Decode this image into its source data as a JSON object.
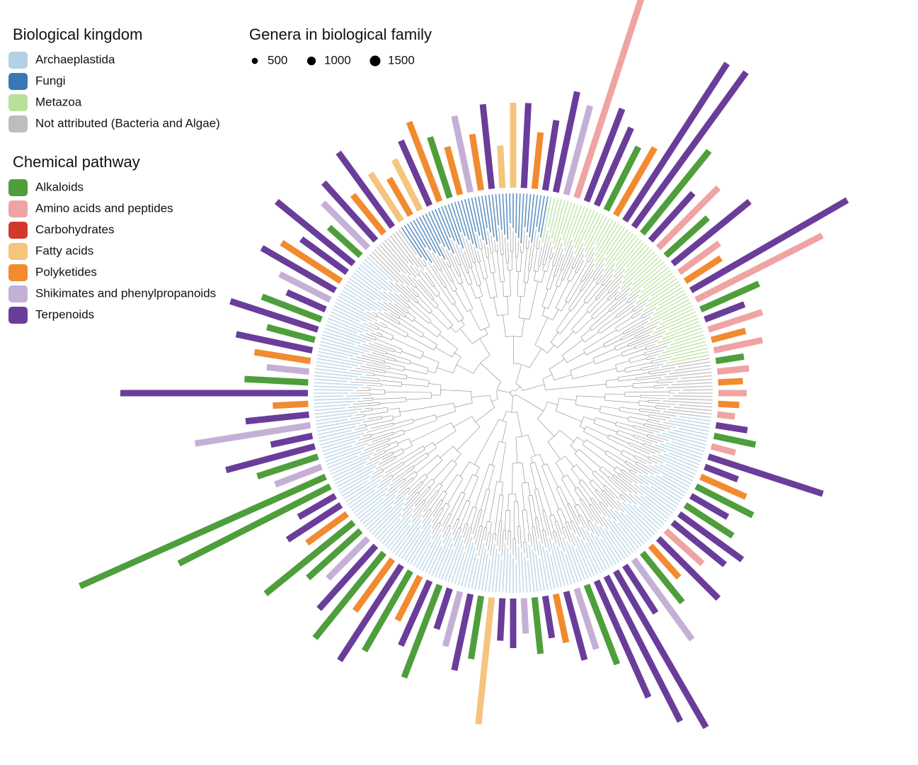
{
  "chart_data": {
    "type": "radial_bar",
    "kingdom_title": "Biological kingdom",
    "kingdoms": [
      {
        "name": "Archaeplastida",
        "color": "#b3d1e6"
      },
      {
        "name": "Fungi",
        "color": "#3a78b5"
      },
      {
        "name": "Metazoa",
        "color": "#b8e09a"
      },
      {
        "name": "Not attributed (Bacteria and Algae)",
        "color": "#bdbdbd"
      }
    ],
    "pathway_title": "Chemical pathway",
    "pathways": [
      {
        "name": "Alkaloids",
        "color": "#4e9e3b"
      },
      {
        "name": "Amino acids and peptides",
        "color": "#f0a3a3"
      },
      {
        "name": "Carbohydrates",
        "color": "#d2392b"
      },
      {
        "name": "Fatty acids",
        "color": "#f5c47e"
      },
      {
        "name": "Polyketides",
        "color": "#f28a30"
      },
      {
        "name": "Shikimates and phenylpropanoids",
        "color": "#c5b0d5"
      },
      {
        "name": "Terpenoids",
        "color": "#6a3d9a"
      }
    ],
    "size_title": "Genera in biological family",
    "size_values": [
      500,
      1000,
      1500
    ],
    "bars": {
      "values": [
        40,
        30,
        25,
        45,
        60,
        35,
        170,
        50,
        70,
        90,
        60,
        80,
        110,
        95,
        70,
        120,
        60,
        90,
        140,
        80,
        255,
        230,
        180,
        120,
        90,
        100,
        70,
        60,
        80,
        50,
        70,
        60,
        180,
        90,
        110,
        80,
        60,
        140,
        100,
        70,
        130,
        160,
        90,
        155,
        120,
        80,
        100,
        160,
        70,
        90,
        60,
        240,
        380,
        70,
        90,
        130,
        60,
        165,
        90,
        50,
        265,
        90,
        60,
        80,
        110,
        70,
        130,
        90,
        60,
        80,
        120,
        100,
        80,
        140,
        60,
        90,
        110,
        70,
        130,
        80,
        60,
        80,
        100,
        120,
        90,
        70,
        110,
        80,
        120,
        60,
        120,
        120,
        80,
        100,
        145,
        130,
        315,
        140,
        120,
        100,
        110,
        265,
        270,
        150,
        90,
        120,
        80,
        140,
        70,
        60,
        255,
        200,
        90,
        60,
        80,
        50,
        70,
        40,
        45,
        35
      ],
      "pathway": [
        1,
        4,
        1,
        6,
        0,
        1,
        6,
        6,
        4,
        0,
        6,
        0,
        6,
        6,
        1,
        6,
        4,
        0,
        5,
        6,
        6,
        6,
        6,
        0,
        5,
        6,
        4,
        6,
        0,
        5,
        6,
        6,
        3,
        0,
        6,
        5,
        6,
        0,
        6,
        4,
        0,
        6,
        4,
        0,
        6,
        5,
        0,
        0,
        4,
        6,
        6,
        0,
        0,
        5,
        0,
        6,
        6,
        5,
        6,
        4,
        6,
        0,
        5,
        4,
        6,
        0,
        6,
        0,
        6,
        5,
        6,
        4,
        6,
        6,
        0,
        5,
        6,
        4,
        6,
        3,
        4,
        3,
        6,
        4,
        0,
        4,
        5,
        4,
        6,
        3,
        3,
        6,
        4,
        6,
        6,
        5,
        1,
        6,
        6,
        0,
        4,
        6,
        6,
        0,
        6,
        1,
        0,
        6,
        1,
        4,
        6,
        1,
        0,
        6,
        1,
        4,
        1,
        0,
        1,
        4
      ],
      "kingdom": [
        3,
        3,
        3,
        0,
        0,
        0,
        0,
        0,
        0,
        0,
        0,
        0,
        0,
        0,
        0,
        0,
        0,
        0,
        0,
        0,
        0,
        0,
        0,
        0,
        0,
        0,
        0,
        0,
        0,
        0,
        0,
        0,
        0,
        0,
        0,
        0,
        0,
        0,
        0,
        0,
        0,
        0,
        0,
        0,
        0,
        0,
        0,
        0,
        0,
        0,
        0,
        0,
        0,
        0,
        0,
        0,
        0,
        0,
        0,
        0,
        0,
        0,
        0,
        0,
        0,
        0,
        0,
        0,
        0,
        0,
        0,
        0,
        0,
        0,
        0,
        3,
        3,
        3,
        3,
        1,
        1,
        1,
        1,
        1,
        1,
        1,
        1,
        1,
        1,
        1,
        1,
        1,
        1,
        1,
        2,
        2,
        2,
        2,
        2,
        2,
        2,
        2,
        2,
        2,
        2,
        2,
        2,
        2,
        2,
        2,
        2,
        2,
        2,
        2,
        2,
        2,
        2,
        3,
        3,
        3
      ]
    }
  }
}
